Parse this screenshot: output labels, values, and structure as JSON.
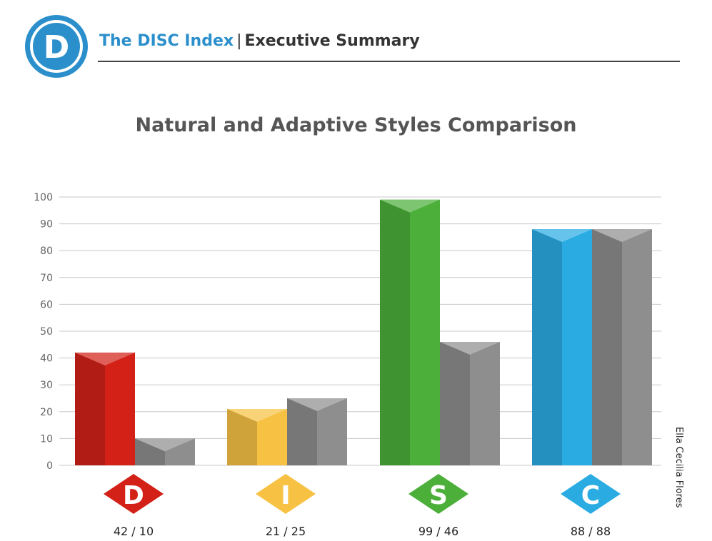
{
  "header": {
    "brand_title": "The DISC Index",
    "separator": "|",
    "subtitle": "Executive Summary",
    "logo_letter": "D"
  },
  "author": "Ella Cecilia Flores",
  "colors": {
    "brand_blue": "#2b8fcb",
    "D": "#d32118",
    "I": "#f7c244",
    "S": "#4caf3a",
    "C": "#2aace3",
    "adaptive_gray": "#8e8e8e"
  },
  "chart_data": {
    "type": "bar",
    "title": "Natural and Adaptive Styles Comparison",
    "categories": [
      "D",
      "I",
      "S",
      "C"
    ],
    "series": [
      {
        "values": [
          42,
          21,
          99,
          88
        ]
      },
      {
        "values": [
          10,
          25,
          46,
          88
        ]
      }
    ],
    "value_labels": [
      "42 / 10",
      "21 / 25",
      "99 / 46",
      "88 / 88"
    ],
    "ylim": [
      0,
      100
    ],
    "yticks": [
      0,
      10,
      20,
      30,
      40,
      50,
      60,
      70,
      80,
      90,
      100
    ],
    "grid": true,
    "legend": "none"
  }
}
